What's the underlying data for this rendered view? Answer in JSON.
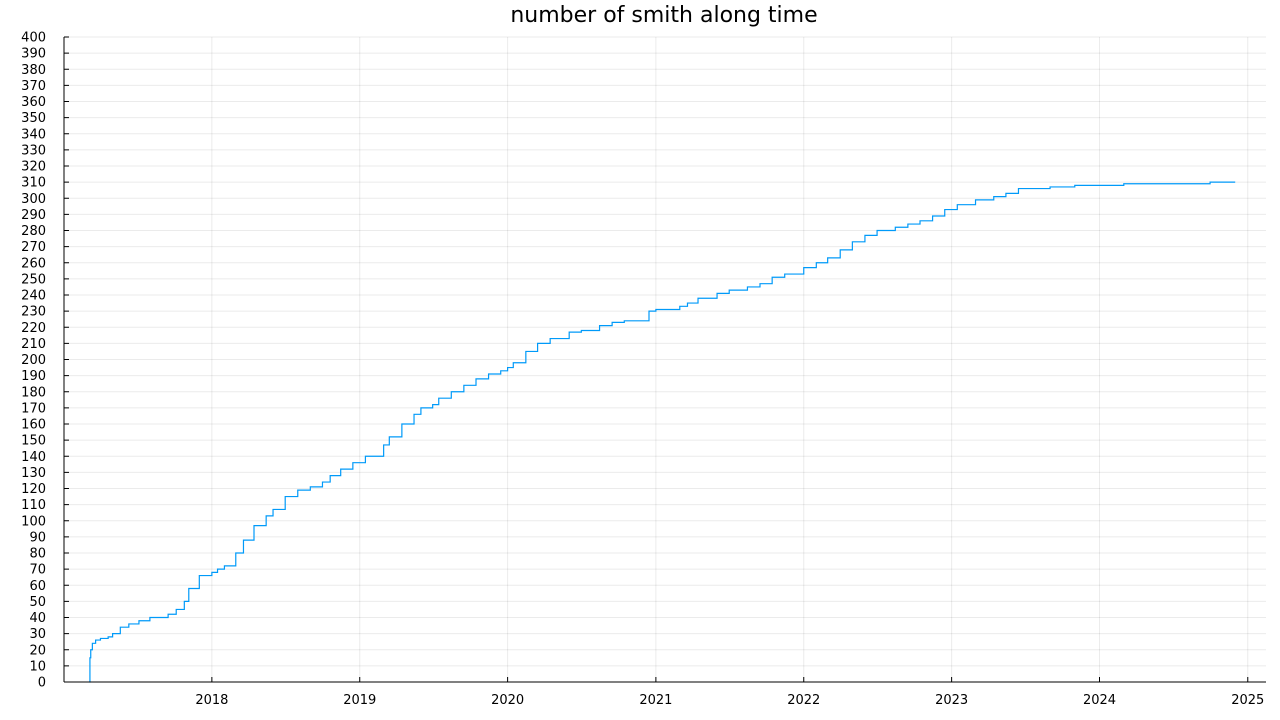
{
  "chart_data": {
    "type": "line",
    "title": "number of smith along time",
    "xlabel": "",
    "ylabel": "",
    "xlim": [
      "2017-01-01",
      "2025-02-15"
    ],
    "ylim": [
      0,
      400
    ],
    "x_ticks": [
      "2018",
      "2019",
      "2020",
      "2021",
      "2022",
      "2023",
      "2024",
      "2025"
    ],
    "y_ticks": [
      0,
      10,
      20,
      30,
      40,
      50,
      60,
      70,
      80,
      90,
      100,
      110,
      120,
      130,
      140,
      150,
      160,
      170,
      180,
      190,
      200,
      210,
      220,
      230,
      240,
      250,
      260,
      270,
      280,
      290,
      300,
      310,
      320,
      330,
      340,
      350,
      360,
      370,
      380,
      390,
      400
    ],
    "grid": true,
    "legend": "none",
    "color": "#009af9",
    "series": [
      {
        "x": [
          "2017-03-05",
          "2017-03-06",
          "2017-03-08",
          "2017-03-12",
          "2017-03-20",
          "2017-04-01",
          "2017-04-20",
          "2017-05-01",
          "2017-05-20",
          "2017-06-10",
          "2017-07-05",
          "2017-08-01",
          "2017-09-15",
          "2017-10-05",
          "2017-10-25",
          "2017-11-05",
          "2017-12-01",
          "2018-01-01",
          "2018-01-15",
          "2018-02-01",
          "2018-03-01",
          "2018-03-20",
          "2018-04-15",
          "2018-05-15",
          "2018-06-01",
          "2018-07-01",
          "2018-08-01",
          "2018-09-01",
          "2018-10-01",
          "2018-10-20",
          "2018-11-15",
          "2018-12-15",
          "2019-01-15",
          "2019-03-01",
          "2019-03-15",
          "2019-04-15",
          "2019-05-15",
          "2019-06-01",
          "2019-06-30",
          "2019-07-15",
          "2019-08-15",
          "2019-09-15",
          "2019-10-15",
          "2019-11-15",
          "2019-12-15",
          "2020-01-01",
          "2020-01-15",
          "2020-02-15",
          "2020-03-15",
          "2020-04-15",
          "2020-06-01",
          "2020-07-01",
          "2020-08-15",
          "2020-09-15",
          "2020-10-15",
          "2020-12-15",
          "2021-01-01",
          "2021-03-01",
          "2021-03-20",
          "2021-04-15",
          "2021-06-01",
          "2021-07-01",
          "2021-08-15",
          "2021-09-15",
          "2021-10-15",
          "2021-11-15",
          "2022-01-01",
          "2022-02-01",
          "2022-03-01",
          "2022-04-01",
          "2022-05-01",
          "2022-06-01",
          "2022-07-01",
          "2022-08-15",
          "2022-09-15",
          "2022-10-15",
          "2022-11-15",
          "2022-12-15",
          "2023-01-15",
          "2023-03-01",
          "2023-04-15",
          "2023-05-15",
          "2023-06-15",
          "2023-09-01",
          "2023-11-01",
          "2024-01-01",
          "2024-03-01",
          "2024-04-01",
          "2024-09-01",
          "2024-09-30",
          "2024-12-01"
        ],
        "y": [
          0,
          15,
          20,
          24,
          26,
          27,
          28,
          30,
          34,
          36,
          38,
          40,
          42,
          45,
          50,
          58,
          66,
          68,
          70,
          72,
          80,
          88,
          97,
          103,
          107,
          115,
          119,
          121,
          124,
          128,
          132,
          136,
          140,
          147,
          152,
          160,
          166,
          170,
          172,
          176,
          180,
          184,
          188,
          191,
          193,
          195,
          198,
          205,
          210,
          213,
          217,
          218,
          221,
          223,
          224,
          230,
          231,
          233,
          235,
          238,
          241,
          243,
          245,
          247,
          251,
          253,
          257,
          260,
          263,
          268,
          273,
          277,
          280,
          282,
          284,
          286,
          289,
          293,
          296,
          299,
          301,
          303,
          306,
          307,
          308,
          308,
          309,
          309,
          309,
          310,
          310
        ]
      }
    ]
  }
}
